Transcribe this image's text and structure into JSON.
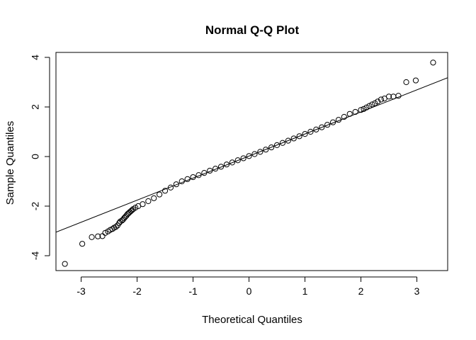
{
  "chart_data": {
    "type": "scatter",
    "title": "Normal Q-Q Plot",
    "xlabel": "Theoretical Quantiles",
    "ylabel": "Sample Quantiles",
    "xlim": [
      -3.45,
      3.55
    ],
    "ylim": [
      -4.6,
      4.2
    ],
    "xticks": [
      -3,
      -2,
      -1,
      0,
      1,
      2,
      3
    ],
    "yticks": [
      -4,
      -2,
      0,
      2,
      4
    ],
    "xtick_labels": [
      "-3",
      "-2",
      "-1",
      "0",
      "1",
      "2",
      "3"
    ],
    "ytick_labels": [
      "-4",
      "-2",
      "0",
      "2",
      "4"
    ],
    "grid": false,
    "legend": "none",
    "reference_line": {
      "intercept": 0.02,
      "slope": 0.89
    },
    "series": [
      {
        "marker": "open-circle",
        "color": "#000000",
        "points": [
          [
            -3.29,
            -4.33
          ],
          [
            -2.98,
            -3.52
          ],
          [
            -2.81,
            -3.25
          ],
          [
            -2.7,
            -3.22
          ],
          [
            -2.62,
            -3.21
          ],
          [
            -2.57,
            -3.08
          ],
          [
            -2.52,
            -3.02
          ],
          [
            -2.48,
            -2.96
          ],
          [
            -2.44,
            -2.92
          ],
          [
            -2.41,
            -2.87
          ],
          [
            -2.38,
            -2.84
          ],
          [
            -2.35,
            -2.78
          ],
          [
            -2.32,
            -2.68
          ],
          [
            -2.3,
            -2.62
          ],
          [
            -2.27,
            -2.58
          ],
          [
            -2.25,
            -2.54
          ],
          [
            -2.23,
            -2.48
          ],
          [
            -2.21,
            -2.43
          ],
          [
            -2.19,
            -2.38
          ],
          [
            -2.17,
            -2.32
          ],
          [
            -2.15,
            -2.28
          ],
          [
            -2.13,
            -2.24
          ],
          [
            -2.11,
            -2.2
          ],
          [
            -2.09,
            -2.16
          ],
          [
            -2.07,
            -2.12
          ],
          [
            -2.03,
            -2.06
          ],
          [
            -1.98,
            -2.0
          ],
          [
            -1.9,
            -1.92
          ],
          [
            -1.8,
            -1.8
          ],
          [
            -1.7,
            -1.68
          ],
          [
            -1.6,
            -1.53
          ],
          [
            -1.5,
            -1.38
          ],
          [
            -1.4,
            -1.25
          ],
          [
            -1.3,
            -1.12
          ],
          [
            -1.2,
            -1.0
          ],
          [
            -1.1,
            -0.91
          ],
          [
            -1.0,
            -0.83
          ],
          [
            -0.9,
            -0.75
          ],
          [
            -0.8,
            -0.66
          ],
          [
            -0.7,
            -0.57
          ],
          [
            -0.6,
            -0.49
          ],
          [
            -0.5,
            -0.41
          ],
          [
            -0.4,
            -0.32
          ],
          [
            -0.3,
            -0.24
          ],
          [
            -0.2,
            -0.15
          ],
          [
            -0.1,
            -0.07
          ],
          [
            0.0,
            0.02
          ],
          [
            0.1,
            0.1
          ],
          [
            0.2,
            0.19
          ],
          [
            0.3,
            0.28
          ],
          [
            0.4,
            0.37
          ],
          [
            0.5,
            0.46
          ],
          [
            0.6,
            0.55
          ],
          [
            0.7,
            0.64
          ],
          [
            0.8,
            0.73
          ],
          [
            0.9,
            0.82
          ],
          [
            1.0,
            0.91
          ],
          [
            1.1,
            1.0
          ],
          [
            1.2,
            1.09
          ],
          [
            1.3,
            1.18
          ],
          [
            1.4,
            1.28
          ],
          [
            1.5,
            1.38
          ],
          [
            1.6,
            1.48
          ],
          [
            1.7,
            1.6
          ],
          [
            1.8,
            1.72
          ],
          [
            1.9,
            1.8
          ],
          [
            2.0,
            1.88
          ],
          [
            2.05,
            1.92
          ],
          [
            2.1,
            1.98
          ],
          [
            2.15,
            2.04
          ],
          [
            2.2,
            2.1
          ],
          [
            2.25,
            2.15
          ],
          [
            2.3,
            2.22
          ],
          [
            2.36,
            2.3
          ],
          [
            2.42,
            2.34
          ],
          [
            2.5,
            2.42
          ],
          [
            2.58,
            2.42
          ],
          [
            2.67,
            2.45
          ],
          [
            2.81,
            3.0
          ],
          [
            2.98,
            3.07
          ],
          [
            3.29,
            3.79
          ]
        ]
      }
    ]
  }
}
